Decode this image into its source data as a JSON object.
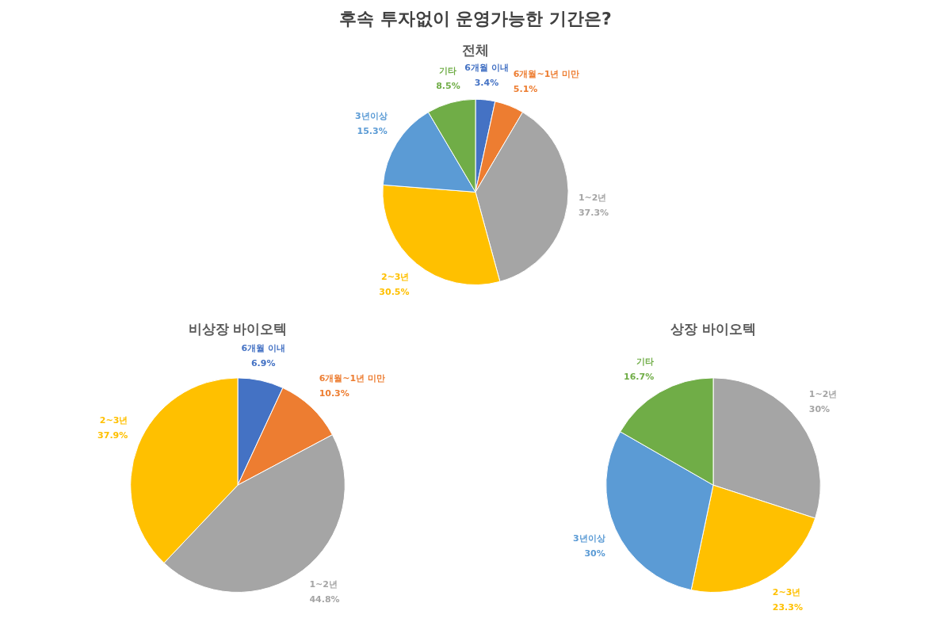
{
  "chart_data": [
    {
      "type": "pie",
      "title": "후속 투자없이 운영가능한 기간은?",
      "subtitle": "전체",
      "categories": [
        "6개월 이내",
        "6개월~1년 미만",
        "1~2년",
        "2~3년",
        "3년이상",
        "기타"
      ],
      "values": [
        3.4,
        5.1,
        37.3,
        30.5,
        15.3,
        8.5
      ],
      "value_labels": [
        "3.4%",
        "5.1%",
        "37.3%",
        "30.5%",
        "15.3%",
        "8.5%"
      ],
      "colors": [
        "#4472c4",
        "#ed7d31",
        "#a5a5a5",
        "#ffc000",
        "#5b9bd5",
        "#70ad47"
      ]
    },
    {
      "type": "pie",
      "title": "비상장 바이오텍",
      "categories": [
        "6개월 이내",
        "6개월~1년 미만",
        "1~2년",
        "2~3년"
      ],
      "values": [
        6.9,
        10.3,
        44.8,
        37.9
      ],
      "value_labels": [
        "6.9%",
        "10.3%",
        "44.8%",
        "37.9%"
      ],
      "colors": [
        "#4472c4",
        "#ed7d31",
        "#a5a5a5",
        "#ffc000"
      ]
    },
    {
      "type": "pie",
      "title": "상장 바이오텍",
      "categories": [
        "1~2년",
        "2~3년",
        "3년이상",
        "기타"
      ],
      "values": [
        30,
        23.3,
        30,
        16.7
      ],
      "value_labels": [
        "30%",
        "23.3%",
        "30%",
        "16.7%"
      ],
      "colors": [
        "#a5a5a5",
        "#ffc000",
        "#5b9bd5",
        "#70ad47"
      ]
    }
  ]
}
